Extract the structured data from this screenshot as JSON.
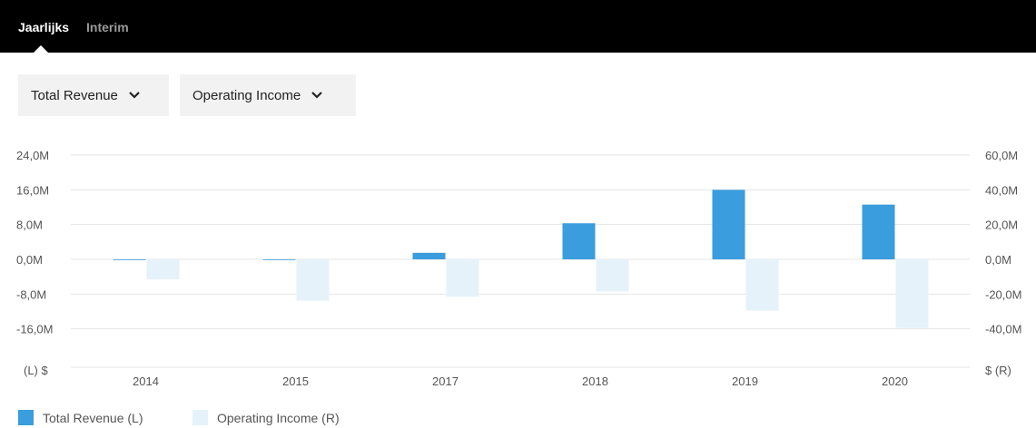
{
  "tabs": [
    {
      "label": "Jaarlijks",
      "active": true
    },
    {
      "label": "Interim",
      "active": false
    }
  ],
  "dropdowns": {
    "left": "Total Revenue",
    "right": "Operating Income"
  },
  "colors": {
    "revenue": "#3a9ddd",
    "operating_income": "#e5f2fa",
    "grid": "#e6e6e6"
  },
  "chart_data": {
    "type": "bar",
    "categories": [
      "2014",
      "2015",
      "2017",
      "2018",
      "2019",
      "2020"
    ],
    "series": [
      {
        "name": "Total Revenue (L)",
        "axis": "left",
        "values": [
          0.0,
          0.0,
          1.5,
          8.3,
          16.0,
          12.6
        ]
      },
      {
        "name": "Operating Income (R)",
        "axis": "right",
        "values": [
          -11.5,
          -23.8,
          -21.5,
          -18.5,
          -29.5,
          -39.5
        ]
      }
    ],
    "y_left": {
      "ylim": [
        -24,
        24
      ],
      "ticks": [
        24,
        16,
        8,
        0,
        -8,
        -16
      ],
      "tick_labels": [
        "24,0M",
        "16,0M",
        "8,0M",
        "0,0M",
        "-8,0M",
        "-16,0M"
      ],
      "unit_label": "(L)  $"
    },
    "y_right": {
      "ylim": [
        -60,
        60
      ],
      "ticks": [
        60,
        40,
        20,
        0,
        -20,
        -40
      ],
      "tick_labels": [
        "60,0M",
        "40,0M",
        "20,0M",
        "0,0M",
        "-20,0M",
        "-40,0M"
      ],
      "unit_label": "$  (R)"
    },
    "grid": true,
    "legend_position": "bottom-left"
  }
}
